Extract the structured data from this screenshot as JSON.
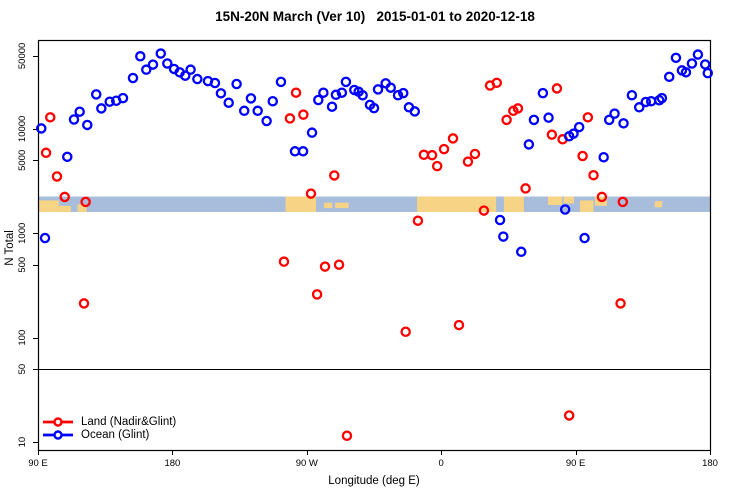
{
  "chart_data": {
    "type": "scatter",
    "title": "15N-20N March (Ver 10)   2015-01-01 to 2020-12-18",
    "xlabel": "Longitude (deg E)",
    "ylabel": "N Total",
    "grid": false,
    "legend_position": "bottom-left",
    "x_axis": {
      "unit": "deg E",
      "range_deg": [
        90,
        540
      ],
      "ticks": [
        {
          "deg": 90,
          "label": "90 E"
        },
        {
          "deg": 180,
          "label": "180"
        },
        {
          "deg": 270,
          "label": "90 W"
        },
        {
          "deg": 360,
          "label": "0"
        },
        {
          "deg": 450,
          "label": "90 E"
        },
        {
          "deg": 540,
          "label": "180"
        }
      ]
    },
    "y_axis": {
      "scale": "log10",
      "range": [
        8.4,
        71000
      ],
      "ticks": [
        10,
        50,
        100,
        500,
        1000,
        5000,
        10000,
        50000
      ]
    },
    "reference_line_n": 50,
    "land_ocean_band": {
      "n_range": [
        1600,
        2250
      ],
      "ocean_color": "#a8bcdc",
      "land_color": "#f6d385",
      "land_patches_deg": [
        [
          90.5,
          104,
          0.25,
          0.75
        ],
        [
          104,
          112,
          0.6,
          0.4
        ],
        [
          116.5,
          122.5,
          0.5,
          0.5
        ],
        [
          255.8,
          276.2,
          0,
          1
        ],
        [
          281.5,
          287,
          0.4,
          0.35
        ],
        [
          289,
          298,
          0.4,
          0.35
        ],
        [
          343.8,
          396.8,
          0,
          1
        ],
        [
          402,
          415.4,
          0,
          1
        ],
        [
          431.5,
          441,
          0,
          0.55
        ],
        [
          442,
          448.9,
          0,
          0.45
        ],
        [
          452.9,
          462,
          0.25,
          0.75
        ],
        [
          463,
          471,
          0,
          0.6
        ],
        [
          503,
          508,
          0.3,
          0.4
        ]
      ]
    },
    "series": [
      {
        "name": "Land (Nadir&Glint)",
        "color": "#ff0000",
        "marker": "open-circle",
        "points": [
          [
            95.4,
            5900
          ],
          [
            98.2,
            12900
          ],
          [
            102.7,
            3500
          ],
          [
            107.9,
            2230
          ],
          [
            120.8,
            213
          ],
          [
            121.9,
            2000
          ],
          [
            254.7,
            535
          ],
          [
            258.7,
            12600
          ],
          [
            262.8,
            22200
          ],
          [
            267.7,
            13700
          ],
          [
            272.8,
            2400
          ],
          [
            276.9,
            260
          ],
          [
            282.2,
            480
          ],
          [
            288.4,
            3580
          ],
          [
            291.6,
            500
          ],
          [
            296.9,
            11.5
          ],
          [
            336.2,
            114
          ],
          [
            344.4,
            1320
          ],
          [
            348.4,
            5650
          ],
          [
            353.9,
            5600
          ],
          [
            357.3,
            4400
          ],
          [
            361.9,
            6400
          ],
          [
            367.9,
            8100
          ],
          [
            371.9,
            132
          ],
          [
            377.9,
            4850
          ],
          [
            382.6,
            5750
          ],
          [
            388.6,
            1650
          ],
          [
            392.7,
            26000
          ],
          [
            397.2,
            27600
          ],
          [
            403.8,
            12200
          ],
          [
            408.3,
            14900
          ],
          [
            411.4,
            15700
          ],
          [
            416.5,
            2690
          ],
          [
            434.1,
            8800
          ],
          [
            437.5,
            24400
          ],
          [
            441.3,
            7950
          ],
          [
            445.7,
            18
          ],
          [
            454.7,
            5500
          ],
          [
            458.2,
            12900
          ],
          [
            462.0,
            3600
          ],
          [
            467.6,
            2230
          ],
          [
            480.1,
            213
          ],
          [
            481.6,
            2000
          ]
        ]
      },
      {
        "name": "Ocean (Glint)",
        "color": "#0000ff",
        "marker": "open-circle",
        "points": [
          [
            92.2,
            10100
          ],
          [
            94.7,
            900
          ],
          [
            109.6,
            5400
          ],
          [
            114.1,
            12300
          ],
          [
            117.9,
            14600
          ],
          [
            123.0,
            10900
          ],
          [
            129.0,
            21400
          ],
          [
            132.4,
            15700
          ],
          [
            138.0,
            18200
          ],
          [
            142.4,
            18600
          ],
          [
            146.9,
            19700
          ],
          [
            153.6,
            30700
          ],
          [
            158.5,
            49600
          ],
          [
            162.5,
            36900
          ],
          [
            167.0,
            41300
          ],
          [
            172.2,
            52700
          ],
          [
            176.6,
            42300
          ],
          [
            181.1,
            37500
          ],
          [
            184.9,
            34800
          ],
          [
            188.6,
            32300
          ],
          [
            192.2,
            36900
          ],
          [
            196.7,
            30000
          ],
          [
            203.8,
            28700
          ],
          [
            208.5,
            27500
          ],
          [
            212.5,
            21900
          ],
          [
            217.7,
            17800
          ],
          [
            223.0,
            26900
          ],
          [
            228.1,
            14900
          ],
          [
            232.6,
            19600
          ],
          [
            237.1,
            14900
          ],
          [
            243.1,
            11900
          ],
          [
            247.2,
            18400
          ],
          [
            252.7,
            28200
          ],
          [
            262.1,
            6100
          ],
          [
            267.5,
            6100
          ],
          [
            273.5,
            9200
          ],
          [
            277.7,
            18900
          ],
          [
            281.1,
            22200
          ],
          [
            286.9,
            16300
          ],
          [
            289.5,
            21200
          ],
          [
            293.5,
            22200
          ],
          [
            296.2,
            28200
          ],
          [
            301.8,
            23600
          ],
          [
            304.7,
            22700
          ],
          [
            307.4,
            21000
          ],
          [
            312.3,
            17000
          ],
          [
            315.0,
            15800
          ],
          [
            317.7,
            23900
          ],
          [
            322.8,
            27300
          ],
          [
            326.2,
            24800
          ],
          [
            331.1,
            21000
          ],
          [
            334.6,
            22000
          ],
          [
            338.4,
            16100
          ],
          [
            342.3,
            14700
          ],
          [
            399.4,
            1340
          ],
          [
            401.6,
            930
          ],
          [
            413.6,
            665
          ],
          [
            418.7,
            7100
          ],
          [
            422.1,
            12200
          ],
          [
            428.1,
            22000
          ],
          [
            431.9,
            12800
          ],
          [
            443.0,
            1690
          ],
          [
            445.7,
            8500
          ],
          [
            448.6,
            9000
          ],
          [
            452.4,
            10400
          ],
          [
            456.0,
            900
          ],
          [
            468.8,
            5350
          ],
          [
            472.5,
            12200
          ],
          [
            476.1,
            14000
          ],
          [
            482.1,
            11300
          ],
          [
            487.7,
            21000
          ],
          [
            492.6,
            16100
          ],
          [
            497.0,
            18100
          ],
          [
            500.6,
            18400
          ],
          [
            506.0,
            18800
          ],
          [
            507.8,
            19700
          ],
          [
            512.7,
            31500
          ],
          [
            517.2,
            47900
          ],
          [
            521.2,
            36300
          ],
          [
            523.9,
            34800
          ],
          [
            527.9,
            42300
          ],
          [
            531.9,
            51500
          ],
          [
            536.8,
            41400
          ],
          [
            538.5,
            34200
          ]
        ]
      }
    ]
  }
}
